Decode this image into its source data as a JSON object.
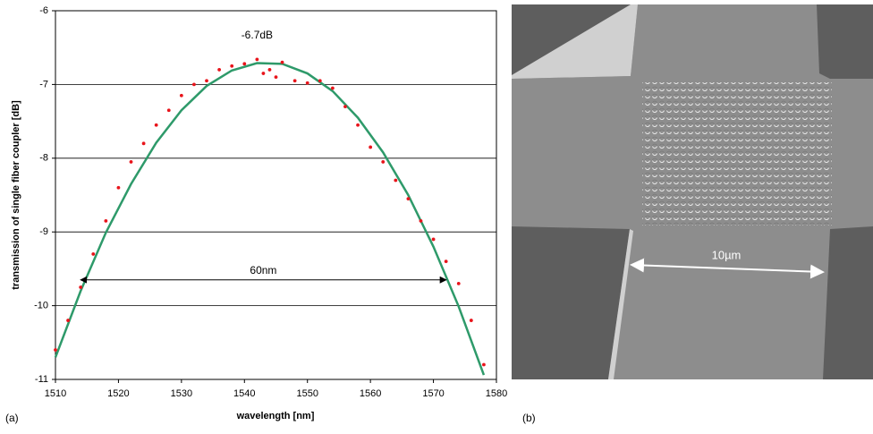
{
  "chart_data": {
    "type": "scatter",
    "ylabel": "transmission of single fiber coupler [dB]",
    "xlabel": "wavelength [nm]",
    "panel_label": "(a)",
    "xlim": [
      1510,
      1580
    ],
    "xticks": [
      1510,
      1520,
      1530,
      1540,
      1550,
      1560,
      1570,
      1580
    ],
    "ylim": [
      -11,
      -6
    ],
    "yticks": [
      -11,
      -10,
      -9,
      -8,
      -7,
      -6
    ],
    "grid": true,
    "series": [
      {
        "style": "markers",
        "color": "#e8141b",
        "x": [
          1510,
          1512,
          1514,
          1516,
          1518,
          1520,
          1522,
          1524,
          1526,
          1528,
          1530,
          1532,
          1534,
          1536,
          1538,
          1540,
          1542,
          1543,
          1544,
          1545,
          1546,
          1548,
          1550,
          1552,
          1554,
          1556,
          1558,
          1560,
          1562,
          1564,
          1566,
          1568,
          1570,
          1572,
          1574,
          1576,
          1578
        ],
        "values": [
          -10.6,
          -10.2,
          -9.75,
          -9.3,
          -8.85,
          -8.4,
          -8.05,
          -7.8,
          -7.55,
          -7.35,
          -7.15,
          -7.0,
          -6.95,
          -6.8,
          -6.75,
          -6.72,
          -6.66,
          -6.85,
          -6.8,
          -6.9,
          -6.7,
          -6.95,
          -6.98,
          -6.95,
          -7.05,
          -7.3,
          -7.55,
          -7.85,
          -8.05,
          -8.3,
          -8.55,
          -8.85,
          -9.1,
          -9.4,
          -9.7,
          -10.2,
          -10.8
        ]
      },
      {
        "style": "line",
        "color": "#2e9a6a",
        "x": [
          1510,
          1514,
          1518,
          1522,
          1526,
          1530,
          1534,
          1538,
          1542,
          1546,
          1550,
          1554,
          1558,
          1562,
          1566,
          1570,
          1574,
          1578
        ],
        "values": [
          -10.7,
          -9.8,
          -9.01,
          -8.35,
          -7.79,
          -7.35,
          -7.02,
          -6.81,
          -6.71,
          -6.72,
          -6.85,
          -7.09,
          -7.45,
          -7.92,
          -8.5,
          -9.2,
          -10.01,
          -10.94
        ]
      }
    ],
    "annotations": [
      {
        "text": "-6.7dB",
        "x": 1542,
        "y": -6.7
      },
      {
        "text": "60nm",
        "x": [
          1514,
          1572
        ],
        "y": -9.65
      }
    ]
  },
  "image": {
    "panel_label": "(b)",
    "scale_label": "10µm"
  }
}
